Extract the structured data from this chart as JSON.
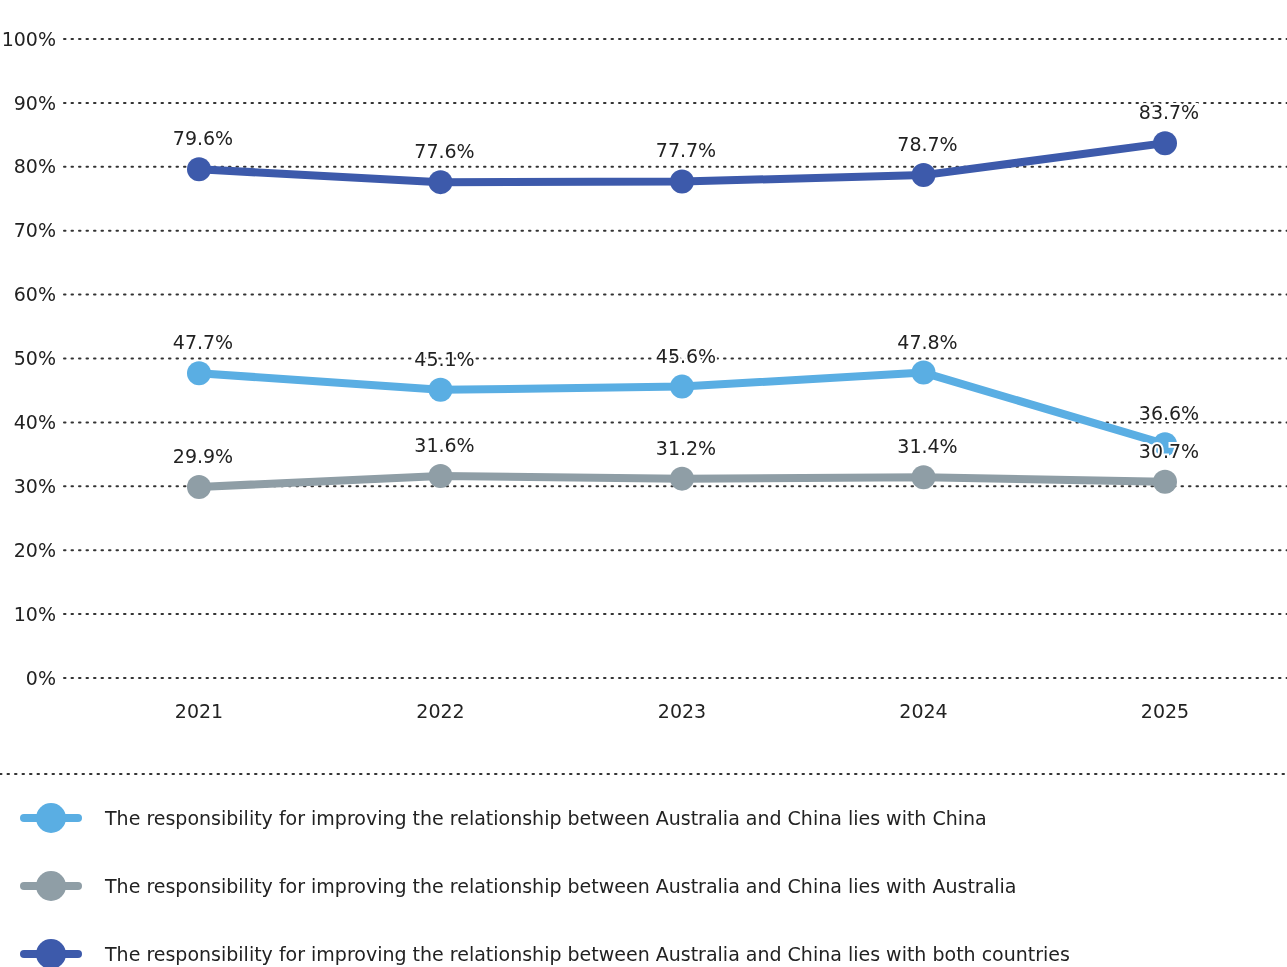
{
  "chart_data": {
    "type": "line",
    "categories": [
      "2021",
      "2022",
      "2023",
      "2024",
      "2025"
    ],
    "series": [
      {
        "name": "The responsibility for improving the relationship between Australia and China lies with China",
        "color": "#5aaee3",
        "values": [
          47.7,
          45.1,
          45.6,
          47.8,
          36.6
        ],
        "value_labels": [
          "47.7%",
          "45.1%",
          "45.6%",
          "47.8%",
          "36.6%"
        ]
      },
      {
        "name": "The responsibility for improving the relationship between Australia and China lies with Australia",
        "color": "#8f9ea6",
        "values": [
          29.9,
          31.6,
          31.2,
          31.4,
          30.7
        ],
        "value_labels": [
          "29.9%",
          "31.6%",
          "31.2%",
          "31.4%",
          "30.7%"
        ]
      },
      {
        "name": "The responsibility for improving the relationship between Australia and China lies with both countries",
        "color": "#3d5aab",
        "values": [
          79.6,
          77.6,
          77.7,
          78.7,
          83.7
        ],
        "value_labels": [
          "79.6%",
          "77.6%",
          "77.7%",
          "78.7%",
          "83.7%"
        ]
      }
    ],
    "ylim": [
      0,
      100
    ],
    "yticks": [
      {
        "value": 0,
        "label": "0%"
      },
      {
        "value": 10,
        "label": "10%"
      },
      {
        "value": 20,
        "label": "20%"
      },
      {
        "value": 30,
        "label": "30%"
      },
      {
        "value": 40,
        "label": "40%"
      },
      {
        "value": 50,
        "label": "50%"
      },
      {
        "value": 60,
        "label": "60%"
      },
      {
        "value": 70,
        "label": "70%"
      },
      {
        "value": 80,
        "label": "80%"
      },
      {
        "value": 90,
        "label": "90%"
      },
      {
        "value": 100,
        "label": "100%"
      }
    ],
    "grid": "y",
    "legend": "bottom",
    "marker": "circle",
    "line_style": "solid"
  }
}
